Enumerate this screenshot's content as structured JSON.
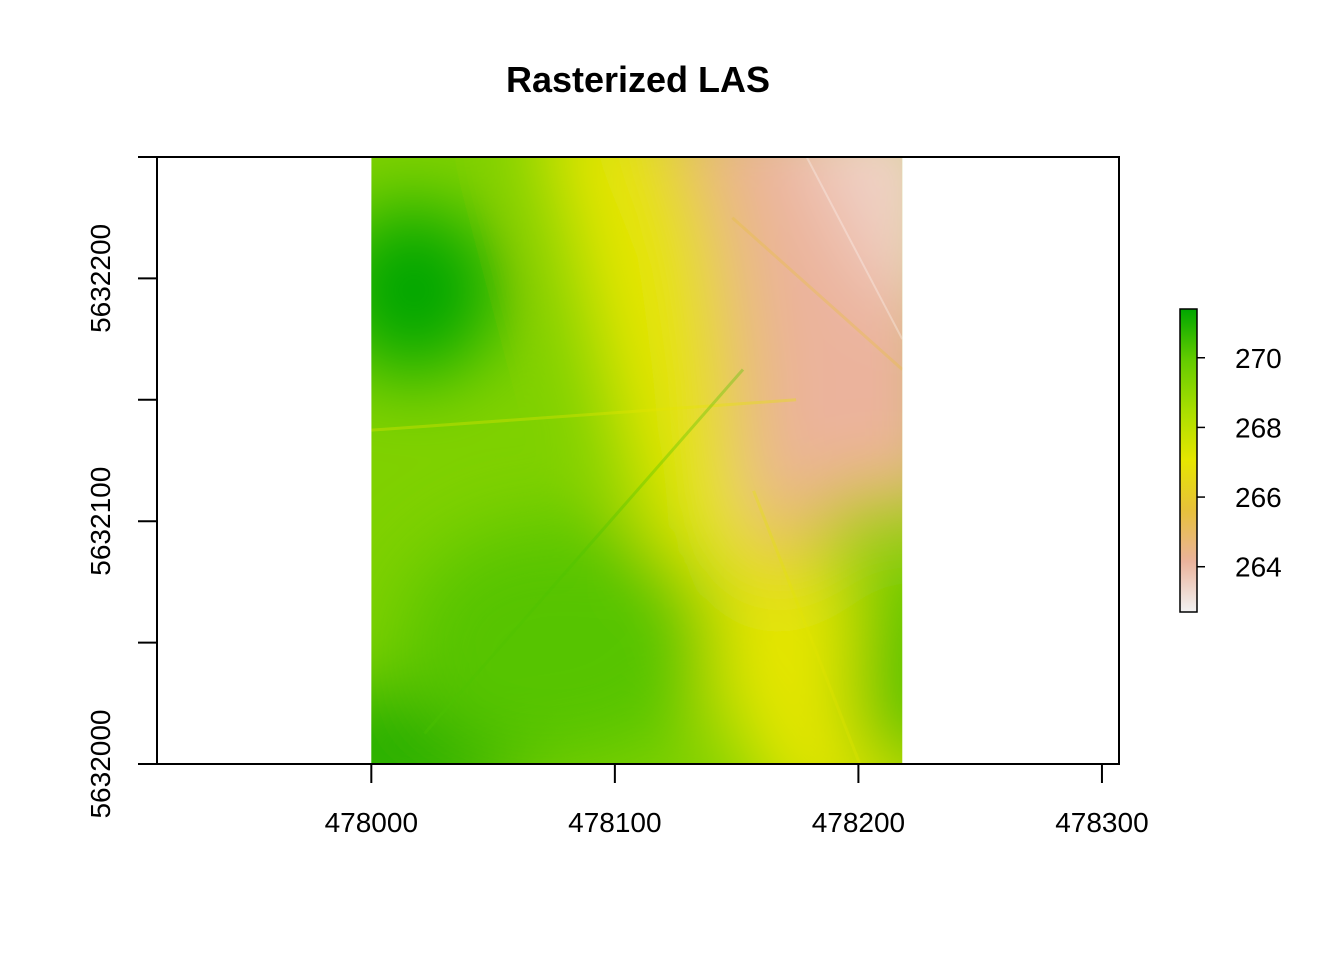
{
  "chart_data": {
    "type": "heatmap",
    "title": "Rasterized LAS",
    "xlabel": "",
    "ylabel": "",
    "xlim": [
      477912,
      478307
    ],
    "ylim": [
      5632000,
      5632250
    ],
    "x_ticks": [
      "478000",
      "478100",
      "478200",
      "478300"
    ],
    "x_tick_values": [
      478000,
      478100,
      478200,
      478300
    ],
    "y_ticks": [
      "5632000",
      "5632100",
      "5632200"
    ],
    "y_tick_values": [
      5632000,
      5632100,
      5632200
    ],
    "y_minor_ticks": [
      5632050,
      5632150,
      5632250
    ],
    "raster_extent": {
      "xmin": 478000,
      "xmax": 478218,
      "ymin": 5632000,
      "ymax": 5632250
    },
    "legend": {
      "position": "right",
      "min": 262.7,
      "max": 271.4,
      "ticks": [
        "264",
        "266",
        "268",
        "270"
      ],
      "tick_values": [
        264,
        266,
        268,
        270
      ],
      "colors": [
        "#f2f2f2",
        "#ebb39c",
        "#e7c03c",
        "#e6e600",
        "#a8de00",
        "#63cc00",
        "#00a600"
      ]
    },
    "grid": false
  }
}
